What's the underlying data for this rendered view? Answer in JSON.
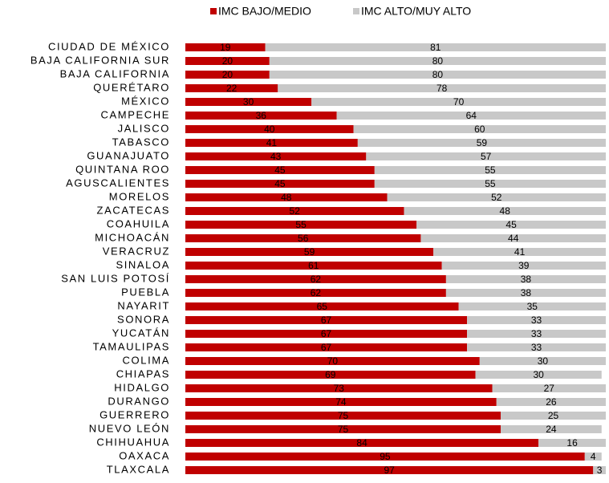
{
  "chart_data": {
    "type": "stacked-barh",
    "categories": [
      "CIUDAD DE MÉXICO",
      "BAJA CALIFORNIA SUR",
      "BAJA CALIFORNIA",
      "QUERÉTARO",
      "MÉXICO",
      "CAMPECHE",
      "JALISCO",
      "TABASCO",
      "GUANAJUATO",
      "QUINTANA ROO",
      "AGUSCALIENTES",
      "MORELOS",
      "ZACATECAS",
      "COAHUILA",
      "MICHOACÁN",
      "VERACRUZ",
      "SINALOA",
      "SAN LUIS POTOSÍ",
      "PUEBLA",
      "NAYARIT",
      "SONORA",
      "YUCATÁN",
      "TAMAULIPAS",
      "COLIMA",
      "CHIAPAS",
      "HIDALGO",
      "DURANGO",
      "GUERRERO",
      "NUEVO LEÓN",
      "CHIHUAHUA",
      "OAXACA",
      "TLAXCALA"
    ],
    "series": [
      {
        "name": "IMC BAJO/MEDIO",
        "color": "#c00000",
        "values": [
          19,
          20,
          20,
          22,
          30,
          36,
          40,
          41,
          43,
          45,
          45,
          48,
          52,
          55,
          56,
          59,
          61,
          62,
          62,
          65,
          67,
          67,
          67,
          70,
          69,
          73,
          74,
          75,
          75,
          84,
          95,
          97
        ]
      },
      {
        "name": "IMC ALTO/MUY ALTO",
        "color": "#c8c8c8",
        "values": [
          81,
          80,
          80,
          78,
          70,
          64,
          60,
          59,
          57,
          55,
          55,
          52,
          48,
          45,
          44,
          41,
          39,
          38,
          38,
          35,
          33,
          33,
          33,
          30,
          30,
          27,
          26,
          25,
          24,
          16,
          4,
          3
        ]
      }
    ],
    "xlim": [
      0,
      100
    ]
  }
}
